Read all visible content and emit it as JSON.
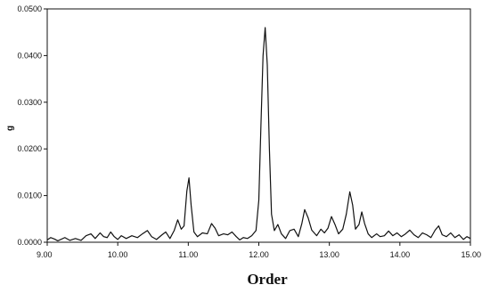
{
  "chart_data": {
    "type": "line",
    "title": "",
    "xlabel": "Order",
    "ylabel": "g",
    "xlim": [
      9.0,
      15.0
    ],
    "ylim": [
      0.0,
      0.05
    ],
    "x_ticks": [
      9.0,
      10.0,
      11.0,
      12.0,
      13.0,
      14.0,
      15.0
    ],
    "x_tick_labels": [
      "9.00",
      "10.00",
      "11.00",
      "12.00",
      "13.00",
      "14.00",
      "15.00"
    ],
    "y_ticks": [
      0.0,
      0.01,
      0.02,
      0.03,
      0.04,
      0.05
    ],
    "y_tick_labels": [
      "0.0000",
      "0.0100",
      "0.0200",
      "0.0300",
      "0.0400",
      "0.0500"
    ],
    "grid": false,
    "series": [
      {
        "color": "#111111",
        "points": [
          [
            9.0,
            0.0005
          ],
          [
            9.05,
            0.001
          ],
          [
            9.1,
            0.0007
          ],
          [
            9.15,
            0.0003
          ],
          [
            9.25,
            0.001
          ],
          [
            9.32,
            0.0004
          ],
          [
            9.4,
            0.0008
          ],
          [
            9.48,
            0.0004
          ],
          [
            9.55,
            0.0014
          ],
          [
            9.62,
            0.0018
          ],
          [
            9.68,
            0.0008
          ],
          [
            9.75,
            0.002
          ],
          [
            9.8,
            0.0012
          ],
          [
            9.85,
            0.001
          ],
          [
            9.9,
            0.0022
          ],
          [
            9.95,
            0.0012
          ],
          [
            10.0,
            0.0006
          ],
          [
            10.05,
            0.0014
          ],
          [
            10.12,
            0.0008
          ],
          [
            10.2,
            0.0014
          ],
          [
            10.28,
            0.001
          ],
          [
            10.35,
            0.0018
          ],
          [
            10.42,
            0.0025
          ],
          [
            10.48,
            0.0012
          ],
          [
            10.55,
            0.0006
          ],
          [
            10.62,
            0.0015
          ],
          [
            10.68,
            0.0022
          ],
          [
            10.74,
            0.0008
          ],
          [
            10.8,
            0.0025
          ],
          [
            10.85,
            0.0048
          ],
          [
            10.9,
            0.0028
          ],
          [
            10.94,
            0.0035
          ],
          [
            10.98,
            0.011
          ],
          [
            11.01,
            0.0138
          ],
          [
            11.04,
            0.008
          ],
          [
            11.08,
            0.0022
          ],
          [
            11.13,
            0.0012
          ],
          [
            11.2,
            0.002
          ],
          [
            11.27,
            0.0018
          ],
          [
            11.33,
            0.004
          ],
          [
            11.38,
            0.003
          ],
          [
            11.43,
            0.0014
          ],
          [
            11.5,
            0.0018
          ],
          [
            11.56,
            0.0016
          ],
          [
            11.62,
            0.0022
          ],
          [
            11.68,
            0.0012
          ],
          [
            11.73,
            0.0005
          ],
          [
            11.78,
            0.001
          ],
          [
            11.84,
            0.0008
          ],
          [
            11.9,
            0.0014
          ],
          [
            11.96,
            0.0025
          ],
          [
            12.0,
            0.009
          ],
          [
            12.03,
            0.025
          ],
          [
            12.06,
            0.04
          ],
          [
            12.09,
            0.046
          ],
          [
            12.12,
            0.038
          ],
          [
            12.15,
            0.02
          ],
          [
            12.18,
            0.006
          ],
          [
            12.22,
            0.0025
          ],
          [
            12.27,
            0.0038
          ],
          [
            12.32,
            0.0018
          ],
          [
            12.38,
            0.0008
          ],
          [
            12.44,
            0.0025
          ],
          [
            12.5,
            0.0028
          ],
          [
            12.56,
            0.0012
          ],
          [
            12.61,
            0.004
          ],
          [
            12.65,
            0.007
          ],
          [
            12.7,
            0.0052
          ],
          [
            12.75,
            0.0026
          ],
          [
            12.82,
            0.0014
          ],
          [
            12.88,
            0.0028
          ],
          [
            12.93,
            0.002
          ],
          [
            12.98,
            0.003
          ],
          [
            13.03,
            0.0055
          ],
          [
            13.08,
            0.0038
          ],
          [
            13.13,
            0.0018
          ],
          [
            13.19,
            0.0028
          ],
          [
            13.24,
            0.006
          ],
          [
            13.29,
            0.0108
          ],
          [
            13.33,
            0.008
          ],
          [
            13.37,
            0.0028
          ],
          [
            13.42,
            0.0038
          ],
          [
            13.46,
            0.0065
          ],
          [
            13.5,
            0.004
          ],
          [
            13.55,
            0.0018
          ],
          [
            13.6,
            0.001
          ],
          [
            13.67,
            0.0018
          ],
          [
            13.72,
            0.0012
          ],
          [
            13.78,
            0.0014
          ],
          [
            13.84,
            0.0024
          ],
          [
            13.9,
            0.0014
          ],
          [
            13.96,
            0.002
          ],
          [
            14.02,
            0.0012
          ],
          [
            14.08,
            0.0018
          ],
          [
            14.14,
            0.0026
          ],
          [
            14.2,
            0.0016
          ],
          [
            14.26,
            0.001
          ],
          [
            14.32,
            0.002
          ],
          [
            14.38,
            0.0016
          ],
          [
            14.44,
            0.001
          ],
          [
            14.5,
            0.0026
          ],
          [
            14.55,
            0.0035
          ],
          [
            14.6,
            0.0016
          ],
          [
            14.66,
            0.0012
          ],
          [
            14.72,
            0.002
          ],
          [
            14.78,
            0.001
          ],
          [
            14.84,
            0.0016
          ],
          [
            14.9,
            0.0006
          ],
          [
            14.95,
            0.0012
          ],
          [
            15.0,
            0.0008
          ]
        ]
      }
    ]
  }
}
